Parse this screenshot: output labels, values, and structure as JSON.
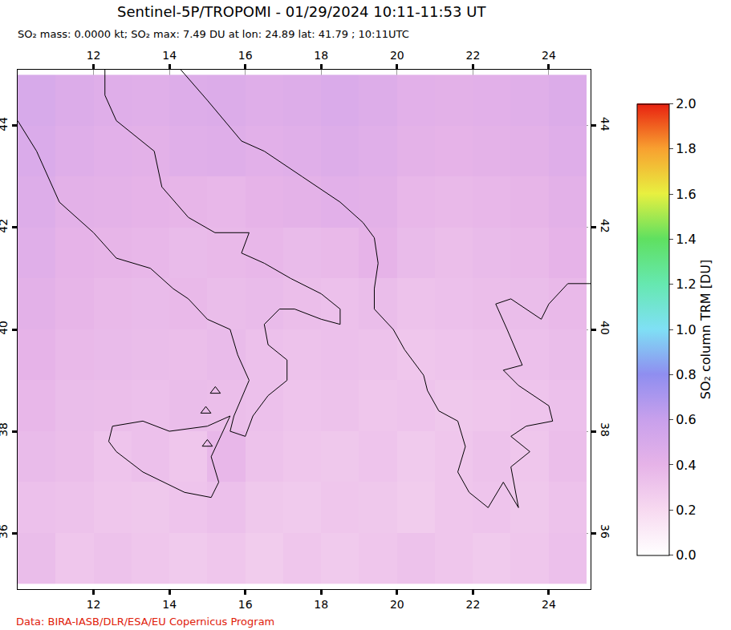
{
  "chart_data": {
    "type": "heatmap",
    "title": "Sentinel-5P/TROPOMI - 01/29/2024 10:11-11:53 UT",
    "subtitle": "SO₂ mass: 0.0000 kt; SO₂ max: 7.49 DU at lon: 24.89 lat: 41.79 ; 10:11UTC",
    "footer": "Data: BIRA-IASB/DLR/ESA/EU Copernicus Program",
    "colorbar_title": "SO₂ column TRM [DU]",
    "xlim": [
      10,
      25.1
    ],
    "ylim": [
      34.9,
      45.1
    ],
    "xticks": [
      12,
      14,
      16,
      18,
      20,
      22,
      24
    ],
    "yticks": [
      36,
      38,
      40,
      42,
      44
    ],
    "grid": true,
    "zlim": [
      0,
      2
    ],
    "zticks": [
      {
        "value": 0,
        "label": "0.0"
      },
      0.2,
      0.4,
      0.6,
      0.8,
      {
        "value": 1,
        "label": "1.0"
      },
      1.2,
      1.4,
      1.6,
      1.8,
      {
        "value": 2,
        "label": "2.0"
      }
    ],
    "x": [
      10.5,
      11.5,
      12.5,
      13.5,
      14.5,
      15.5,
      16.5,
      17.5,
      18.5,
      19.5,
      20.5,
      21.5,
      22.5,
      23.5,
      24.5
    ],
    "y": [
      35.5,
      36.5,
      37.5,
      38.5,
      39.5,
      40.5,
      41.5,
      42.5,
      43.5,
      44.5
    ],
    "z": [
      [
        0.35,
        0.3,
        0.32,
        0.3,
        0.28,
        0.3,
        0.27,
        0.3,
        0.28,
        0.3,
        0.32,
        0.3,
        0.28,
        0.3,
        0.33
      ],
      [
        0.33,
        0.32,
        0.3,
        0.29,
        0.31,
        0.33,
        0.29,
        0.28,
        0.3,
        0.29,
        0.27,
        0.3,
        0.31,
        0.29,
        0.32
      ],
      [
        0.36,
        0.34,
        0.31,
        0.33,
        0.3,
        0.38,
        0.32,
        0.3,
        0.29,
        0.31,
        0.28,
        0.3,
        0.32,
        0.3,
        0.34
      ],
      [
        0.38,
        0.35,
        0.34,
        0.33,
        0.35,
        0.34,
        0.33,
        0.31,
        0.32,
        0.3,
        0.31,
        0.29,
        0.3,
        0.31,
        0.33
      ],
      [
        0.4,
        0.37,
        0.36,
        0.35,
        0.34,
        0.36,
        0.33,
        0.32,
        0.33,
        0.32,
        0.3,
        0.31,
        0.32,
        0.33,
        0.35
      ],
      [
        0.42,
        0.39,
        0.37,
        0.36,
        0.37,
        0.35,
        0.36,
        0.34,
        0.33,
        0.35,
        0.32,
        0.33,
        0.34,
        0.35,
        0.37
      ],
      [
        0.44,
        0.4,
        0.39,
        0.38,
        0.36,
        0.37,
        0.38,
        0.36,
        0.37,
        0.4,
        0.36,
        0.34,
        0.36,
        0.37,
        0.4
      ],
      [
        0.46,
        0.42,
        0.41,
        0.4,
        0.39,
        0.38,
        0.4,
        0.41,
        0.43,
        0.42,
        0.38,
        0.37,
        0.38,
        0.39,
        0.42
      ],
      [
        0.48,
        0.45,
        0.43,
        0.42,
        0.44,
        0.45,
        0.43,
        0.44,
        0.46,
        0.44,
        0.41,
        0.4,
        0.41,
        0.42,
        0.45
      ],
      [
        0.5,
        0.47,
        0.45,
        0.44,
        0.46,
        0.47,
        0.45,
        0.46,
        0.48,
        0.46,
        0.43,
        0.42,
        0.43,
        0.44,
        0.47
      ]
    ],
    "coastlines": [
      {
        "lon": [
          10.0,
          10.5,
          11.1,
          12.0,
          12.6,
          13.5,
          14.1,
          14.5,
          15.0,
          15.6,
          15.8,
          16.1,
          15.7,
          15.6,
          16.0,
          16.2,
          16.6,
          17.1,
          17.1,
          16.6,
          16.5,
          16.9,
          17.3,
          18.0,
          18.5,
          18.5,
          18.0,
          17.2,
          16.5,
          15.9,
          16.1,
          15.2,
          14.5,
          13.8,
          13.6,
          12.6,
          12.3,
          12.3
        ],
        "lat": [
          44.1,
          43.5,
          42.5,
          41.9,
          41.4,
          41.2,
          40.8,
          40.6,
          40.2,
          40.0,
          39.5,
          39.0,
          38.3,
          38.0,
          37.9,
          38.3,
          38.7,
          39.0,
          39.4,
          39.7,
          40.1,
          40.4,
          40.4,
          40.2,
          40.1,
          40.4,
          40.7,
          41.0,
          41.3,
          41.5,
          41.9,
          41.9,
          42.2,
          42.8,
          43.5,
          44.1,
          44.6,
          45.1
        ]
      },
      {
        "lon": [
          12.4,
          12.5,
          13.3,
          14.0,
          15.0,
          15.6,
          15.1,
          15.3,
          15.1,
          14.4,
          13.3,
          12.6,
          12.4
        ],
        "lat": [
          37.8,
          38.1,
          38.2,
          38.0,
          38.1,
          38.3,
          37.5,
          37.0,
          36.7,
          36.8,
          37.2,
          37.6,
          37.8
        ]
      },
      {
        "lon": [
          14.3,
          15.0,
          15.9,
          16.5,
          17.5,
          18.5,
          19.1,
          19.4,
          19.5,
          19.4,
          19.4,
          19.9,
          20.2,
          20.7,
          20.8,
          21.1,
          21.6,
          21.8,
          21.6,
          21.9,
          22.4,
          22.8,
          23.2,
          23.0,
          23.5,
          23.0,
          23.4,
          24.1,
          24.0,
          23.2,
          22.8,
          23.3,
          22.9,
          22.6,
          23.0,
          23.8,
          24.0,
          24.5,
          25.1
        ],
        "lat": [
          45.1,
          44.5,
          43.7,
          43.5,
          43.0,
          42.5,
          42.1,
          41.8,
          41.3,
          40.8,
          40.4,
          40.0,
          39.6,
          39.1,
          38.8,
          38.4,
          38.2,
          37.7,
          37.2,
          36.8,
          36.5,
          37.0,
          36.5,
          37.3,
          37.6,
          37.9,
          38.1,
          38.2,
          38.5,
          38.9,
          39.2,
          39.3,
          40.0,
          40.5,
          40.6,
          40.2,
          40.5,
          40.9,
          40.9
        ]
      }
    ],
    "volcanoes": {
      "lon": [
        15.21,
        14.96,
        15.0
      ],
      "lat": [
        38.79,
        38.4,
        37.75
      ],
      "marker": "triangle-up-open"
    }
  }
}
